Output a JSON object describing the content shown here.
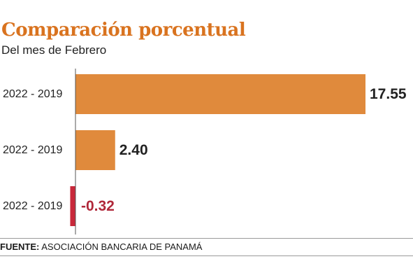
{
  "header": {
    "title": "Comparación porcentual",
    "subtitle": "Del mes de Febrero"
  },
  "footer": {
    "source_label": "FUENTE:",
    "source_text": "ASOCIACIÓN BANCARIA DE PANAMÁ"
  },
  "colors": {
    "title": "#d9731f",
    "positive_bar": "#e08a3c",
    "negative_bar": "#c8283a",
    "positive_label": "#222222",
    "negative_label": "#b0283a",
    "axis": "#555555"
  },
  "chart_data": {
    "type": "bar",
    "orientation": "horizontal",
    "title": "Comparación porcentual",
    "subtitle": "Del mes de Febrero",
    "categories": [
      "2022 - 2019",
      "2022 - 2019",
      "2022 - 2019"
    ],
    "values": [
      17.55,
      2.4,
      -0.32
    ],
    "value_labels": [
      "17.55",
      "2.40",
      "-0.32"
    ],
    "xlim": [
      -0.32,
      17.55
    ],
    "grid": false,
    "legend": "none"
  }
}
